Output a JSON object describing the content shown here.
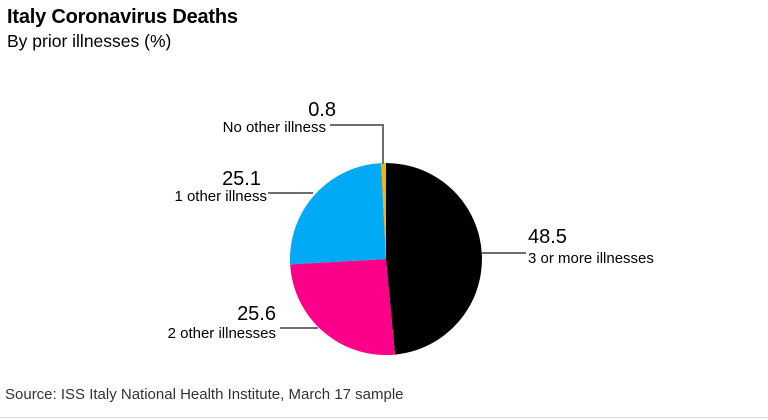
{
  "header": {
    "title": "Italy Coronavirus Deaths",
    "subtitle": "By prior illnesses (%)"
  },
  "chart_data": {
    "type": "pie",
    "title": "Italy Coronavirus Deaths",
    "subtitle": "By prior illnesses (%)",
    "unit": "%",
    "direction": "clockwise",
    "start_angle": "12 o'clock",
    "legend_position": "callout-labels",
    "slices": [
      {
        "label": "3 or more illnesses",
        "value": 48.5,
        "color": "#000000"
      },
      {
        "label": "2 other illnesses",
        "value": 25.6,
        "color": "#FB0089"
      },
      {
        "label": "1 other illness",
        "value": 25.1,
        "color": "#00AAF5"
      },
      {
        "label": "No other illness",
        "value": 0.8,
        "color": "#FCB200"
      }
    ]
  },
  "source": {
    "text": "Source: ISS Italy National Health Institute, March 17 sample"
  },
  "colors": {
    "background": "#FFFFFF",
    "text": "#000000",
    "source_text": "#333333",
    "leader_line": "#6E6E6E",
    "bottom_rule": "#DCDCDC"
  }
}
